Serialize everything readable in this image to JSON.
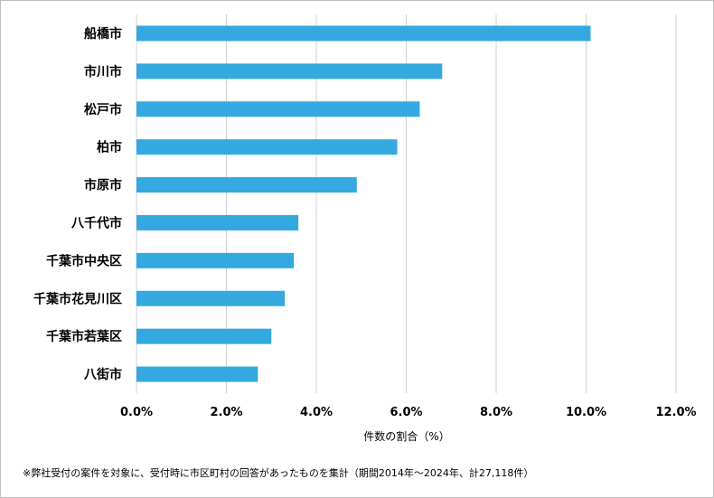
{
  "chart_data": {
    "type": "bar",
    "orientation": "horizontal",
    "categories": [
      "船橋市",
      "市川市",
      "松戸市",
      "柏市",
      "市原市",
      "八千代市",
      "千葉市中央区",
      "千葉市花見川区",
      "千葉市若葉区",
      "八街市"
    ],
    "values": [
      10.1,
      6.8,
      6.3,
      5.8,
      4.9,
      3.6,
      3.5,
      3.3,
      3.0,
      2.7
    ],
    "xlim": [
      0,
      12
    ],
    "xticks": [
      "0.0%",
      "2.0%",
      "4.0%",
      "6.0%",
      "8.0%",
      "10.0%",
      "12.0%"
    ],
    "xlabel": "件数の割合（%）",
    "grid": true,
    "bar_color": "#33a9e0"
  },
  "footnote": "※弊社受付の案件を対象に、受付時に市区町村の回答があったものを集計（期間2014年～2024年、計27,118件）"
}
